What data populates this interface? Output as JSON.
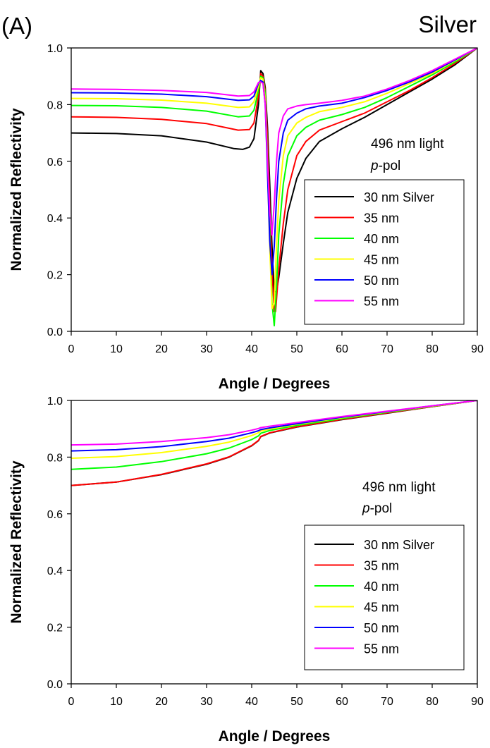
{
  "chart_data": [
    {
      "type": "line",
      "panel_label": "(A)",
      "title": "Silver",
      "xlabel": "Angle / Degrees",
      "ylabel": "Normalized Reflectivity",
      "xlim": [
        0,
        90
      ],
      "ylim": [
        0,
        1.0
      ],
      "xticks": [
        "0",
        "10",
        "20",
        "30",
        "40",
        "50",
        "60",
        "70",
        "80",
        "90"
      ],
      "yticks": [
        "0.0",
        "0.2",
        "0.4",
        "0.6",
        "0.8",
        "1.0"
      ],
      "annotation": {
        "line1": "496 nm light",
        "line2_italic": "p",
        "line2_rest": "-pol"
      },
      "grid": false,
      "legend_position": "right",
      "series": [
        {
          "name": "30 nm Silver",
          "color": "#000000",
          "x": [
            0,
            10,
            20,
            30,
            36,
            38,
            39.5,
            40.5,
            41.5,
            42,
            42.5,
            43,
            43.5,
            44,
            44.5,
            45,
            45.5,
            46,
            47,
            48,
            50,
            52,
            55,
            60,
            65,
            70,
            75,
            80,
            85,
            90
          ],
          "y": [
            0.7,
            0.698,
            0.69,
            0.668,
            0.645,
            0.642,
            0.65,
            0.68,
            0.8,
            0.92,
            0.91,
            0.86,
            0.72,
            0.52,
            0.3,
            0.14,
            0.14,
            0.19,
            0.31,
            0.42,
            0.54,
            0.61,
            0.67,
            0.715,
            0.755,
            0.8,
            0.845,
            0.89,
            0.94,
            1.0
          ]
        },
        {
          "name": "35 nm",
          "color": "#ff0000",
          "x": [
            0,
            10,
            20,
            30,
            37,
            39.5,
            40.5,
            41.5,
            42,
            42.5,
            43,
            43.5,
            44,
            44.5,
            45,
            45.3,
            46,
            47,
            48,
            50,
            52,
            55,
            60,
            65,
            70,
            75,
            80,
            85,
            90
          ],
          "y": [
            0.757,
            0.755,
            0.748,
            0.733,
            0.71,
            0.712,
            0.735,
            0.83,
            0.91,
            0.9,
            0.85,
            0.68,
            0.44,
            0.22,
            0.07,
            0.07,
            0.22,
            0.38,
            0.5,
            0.62,
            0.67,
            0.71,
            0.74,
            0.77,
            0.81,
            0.85,
            0.895,
            0.945,
            1.0
          ]
        },
        {
          "name": "40 nm",
          "color": "#00ff00",
          "x": [
            0,
            10,
            20,
            30,
            37,
            39.5,
            40.5,
            41.5,
            42,
            42.5,
            43,
            43.5,
            44,
            44.5,
            45,
            45.5,
            46,
            47,
            48,
            50,
            52,
            55,
            60,
            65,
            70,
            75,
            80,
            85,
            90
          ],
          "y": [
            0.797,
            0.796,
            0.79,
            0.777,
            0.757,
            0.76,
            0.78,
            0.85,
            0.9,
            0.895,
            0.84,
            0.62,
            0.36,
            0.1,
            0.02,
            0.16,
            0.34,
            0.52,
            0.62,
            0.69,
            0.72,
            0.745,
            0.765,
            0.79,
            0.825,
            0.865,
            0.905,
            0.95,
            1.0
          ]
        },
        {
          "name": "45 nm",
          "color": "#ffff00",
          "x": [
            0,
            10,
            20,
            30,
            37,
            39.5,
            40.5,
            41.5,
            42,
            42.5,
            43,
            43.5,
            44,
            44.5,
            45,
            45.5,
            46,
            47,
            48,
            50,
            52,
            55,
            60,
            65,
            70,
            75,
            80,
            85,
            90
          ],
          "y": [
            0.822,
            0.821,
            0.816,
            0.805,
            0.79,
            0.792,
            0.81,
            0.865,
            0.895,
            0.89,
            0.82,
            0.58,
            0.3,
            0.08,
            0.1,
            0.3,
            0.46,
            0.62,
            0.69,
            0.735,
            0.755,
            0.775,
            0.79,
            0.81,
            0.84,
            0.875,
            0.91,
            0.955,
            1.0
          ]
        },
        {
          "name": "50 nm",
          "color": "#0000ff",
          "x": [
            0,
            10,
            20,
            30,
            37,
            39.5,
            40.5,
            41.5,
            42,
            42.5,
            43,
            43.5,
            44,
            44.5,
            45,
            45.5,
            46,
            47,
            48,
            50,
            52,
            55,
            60,
            65,
            70,
            75,
            80,
            85,
            90
          ],
          "y": [
            0.842,
            0.841,
            0.837,
            0.828,
            0.815,
            0.817,
            0.83,
            0.875,
            0.885,
            0.88,
            0.8,
            0.56,
            0.32,
            0.2,
            0.3,
            0.47,
            0.6,
            0.7,
            0.745,
            0.77,
            0.785,
            0.795,
            0.805,
            0.825,
            0.85,
            0.88,
            0.915,
            0.957,
            1.0
          ]
        },
        {
          "name": "55 nm",
          "color": "#ff00ff",
          "x": [
            0,
            10,
            20,
            30,
            37,
            39.5,
            40.5,
            41.5,
            42,
            42.5,
            43,
            43.5,
            44,
            44.5,
            45,
            45.5,
            46,
            47,
            48,
            50,
            52,
            55,
            60,
            65,
            70,
            75,
            80,
            85,
            90
          ],
          "y": [
            0.855,
            0.854,
            0.85,
            0.843,
            0.83,
            0.832,
            0.845,
            0.878,
            0.88,
            0.875,
            0.8,
            0.6,
            0.42,
            0.34,
            0.45,
            0.6,
            0.7,
            0.76,
            0.785,
            0.795,
            0.8,
            0.805,
            0.815,
            0.83,
            0.855,
            0.885,
            0.92,
            0.96,
            1.0
          ]
        }
      ]
    },
    {
      "type": "line",
      "xlabel": "Angle / Degrees",
      "ylabel": "Normalized Reflectivity",
      "xlim": [
        0,
        90
      ],
      "ylim": [
        0,
        1.0
      ],
      "xticks": [
        "0",
        "10",
        "20",
        "30",
        "40",
        "50",
        "60",
        "70",
        "80",
        "90"
      ],
      "yticks": [
        "0.0",
        "0.2",
        "0.4",
        "0.6",
        "0.8",
        "1.0"
      ],
      "annotation": {
        "line1": "496 nm light",
        "line2_italic": "p",
        "line2_rest": "-pol"
      },
      "grid": false,
      "legend_position": "right",
      "series": [
        {
          "name": "30 nm Silver",
          "color": "#000000",
          "x": [
            0,
            10,
            20,
            30,
            35,
            40,
            41.5,
            42,
            44,
            50,
            60,
            70,
            80,
            90
          ],
          "y": [
            0.7,
            0.712,
            0.738,
            0.775,
            0.8,
            0.84,
            0.858,
            0.872,
            0.885,
            0.906,
            0.932,
            0.955,
            0.978,
            1.0
          ]
        },
        {
          "name": "35 nm",
          "color": "#ff0000",
          "x": [
            0,
            10,
            20,
            30,
            35,
            40,
            41.5,
            42,
            44,
            50,
            60,
            70,
            80,
            90
          ],
          "y": [
            0.7,
            0.712,
            0.739,
            0.776,
            0.801,
            0.841,
            0.859,
            0.873,
            0.886,
            0.907,
            0.933,
            0.956,
            0.978,
            1.0
          ]
        },
        {
          "name": "40 nm",
          "color": "#00ff00",
          "x": [
            0,
            10,
            20,
            30,
            35,
            40,
            41.5,
            42,
            44,
            50,
            60,
            70,
            80,
            90
          ],
          "y": [
            0.757,
            0.765,
            0.784,
            0.812,
            0.832,
            0.862,
            0.875,
            0.884,
            0.894,
            0.912,
            0.936,
            0.958,
            0.979,
            1.0
          ]
        },
        {
          "name": "45 nm",
          "color": "#ffff00",
          "x": [
            0,
            10,
            20,
            30,
            35,
            40,
            41.5,
            42,
            44,
            50,
            60,
            70,
            80,
            90
          ],
          "y": [
            0.796,
            0.802,
            0.816,
            0.838,
            0.853,
            0.876,
            0.886,
            0.892,
            0.899,
            0.916,
            0.939,
            0.96,
            0.98,
            1.0
          ]
        },
        {
          "name": "50 nm",
          "color": "#0000ff",
          "x": [
            0,
            10,
            20,
            30,
            35,
            40,
            41.5,
            42,
            44,
            50,
            60,
            70,
            80,
            90
          ],
          "y": [
            0.822,
            0.826,
            0.837,
            0.855,
            0.867,
            0.886,
            0.893,
            0.897,
            0.903,
            0.918,
            0.941,
            0.961,
            0.981,
            1.0
          ]
        },
        {
          "name": "55 nm",
          "color": "#ff00ff",
          "x": [
            0,
            10,
            20,
            30,
            35,
            40,
            41.5,
            42,
            44,
            50,
            60,
            70,
            80,
            90
          ],
          "y": [
            0.843,
            0.846,
            0.855,
            0.869,
            0.879,
            0.895,
            0.901,
            0.904,
            0.909,
            0.922,
            0.943,
            0.962,
            0.981,
            1.0
          ]
        }
      ]
    }
  ]
}
